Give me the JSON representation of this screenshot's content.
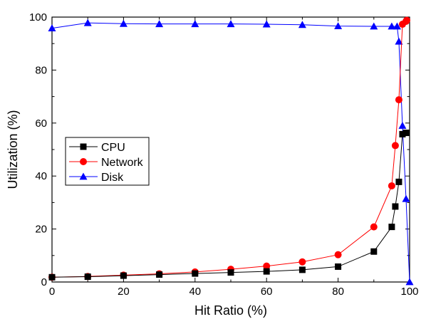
{
  "chart_data": {
    "type": "line",
    "title": "",
    "xlabel": "Hit Ratio (%)",
    "ylabel": "Utilization (%)",
    "xlim": [
      0,
      100
    ],
    "ylim": [
      0,
      100
    ],
    "xticks": [
      "0",
      "20",
      "40",
      "60",
      "80",
      "100"
    ],
    "yticks": [
      "0",
      "20",
      "40",
      "60",
      "80",
      "100"
    ],
    "legend_position": "center-left",
    "grid": false,
    "series": [
      {
        "name": "CPU",
        "color": "#000000",
        "marker": "square",
        "x": [
          0,
          10,
          20,
          30,
          40,
          50,
          60,
          70,
          80,
          90,
          95,
          96,
          97,
          98,
          99
        ],
        "y": [
          1.8,
          2.0,
          2.4,
          2.8,
          3.2,
          3.6,
          4.0,
          4.6,
          5.8,
          11.5,
          20.8,
          28.5,
          37.8,
          55.8,
          56.3
        ]
      },
      {
        "name": "Network",
        "color": "#ff0000",
        "marker": "circle",
        "x": [
          0,
          10,
          20,
          30,
          40,
          50,
          60,
          70,
          80,
          90,
          95,
          96,
          97,
          98,
          99,
          99.2
        ],
        "y": [
          1.8,
          2.1,
          2.6,
          3.1,
          3.8,
          4.8,
          6.0,
          7.6,
          10.3,
          20.8,
          36.3,
          51.5,
          68.8,
          97.3,
          98.4,
          98.8
        ]
      },
      {
        "name": "Disk",
        "color": "#0000ff",
        "marker": "triangle",
        "x": [
          0,
          10,
          20,
          30,
          40,
          50,
          60,
          70,
          80,
          90,
          95,
          96.5,
          97,
          98,
          99,
          100
        ],
        "y": [
          95.8,
          97.8,
          97.5,
          97.4,
          97.4,
          97.4,
          97.3,
          97.1,
          96.6,
          96.5,
          96.5,
          96.5,
          90.8,
          59.0,
          31.4,
          0.0
        ]
      }
    ]
  }
}
